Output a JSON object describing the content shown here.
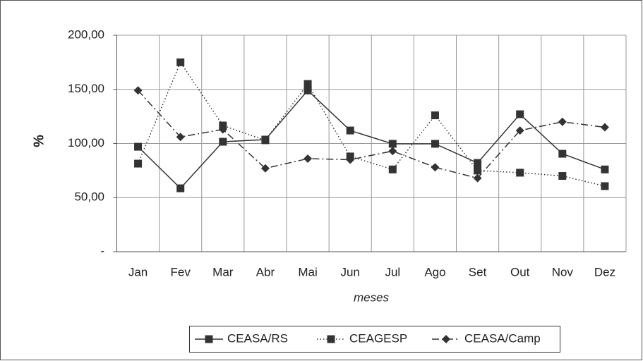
{
  "chart_data": {
    "type": "line",
    "x_label": "meses",
    "y_label": "%",
    "categories": [
      "Jan",
      "Fev",
      "Mar",
      "Abr",
      "Mai",
      "Jun",
      "Jul",
      "Ago",
      "Set",
      "Out",
      "Nov",
      "Dez"
    ],
    "series": [
      {
        "name": "CEASA/RS",
        "color": "#333333",
        "line_style": "solid",
        "marker": "square",
        "values": [
          97,
          58.6,
          101.6,
          103.6,
          149,
          112,
          99.7,
          99.7,
          82,
          127,
          90.5,
          76
        ]
      },
      {
        "name": "CEAGESP",
        "color": "#333333",
        "line_style": "dotted",
        "marker": "square",
        "values": [
          81.4,
          175,
          116.6,
          103,
          155,
          88,
          76,
          126,
          75,
          73,
          70,
          60.6
        ]
      },
      {
        "name": "CEASA/Camp",
        "color": "#333333",
        "line_style": "dashdot",
        "marker": "diamond",
        "values": [
          149,
          106,
          113,
          77,
          86,
          85,
          93,
          78,
          68,
          112,
          120,
          115
        ]
      }
    ],
    "ylim": [
      0,
      200
    ],
    "yticks": [
      {
        "value": 0,
        "label": "-"
      },
      {
        "value": 50,
        "label": "50,00"
      },
      {
        "value": 100,
        "label": "100,00"
      },
      {
        "value": 150,
        "label": "150,00"
      },
      {
        "value": 200,
        "label": "200,00"
      }
    ],
    "grid": true,
    "legend": "bottom"
  }
}
